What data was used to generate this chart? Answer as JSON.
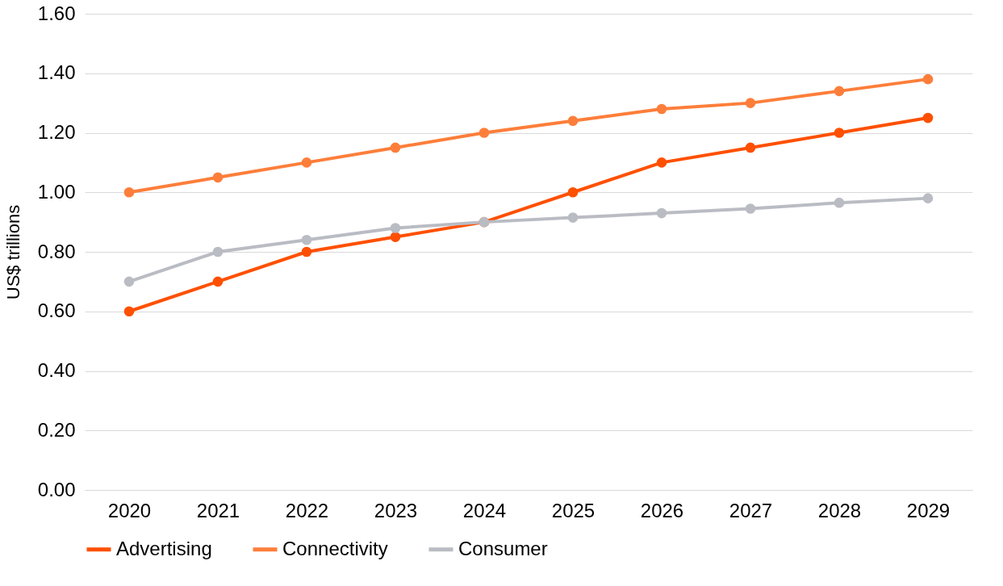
{
  "chart_data": {
    "type": "line",
    "ylabel": "US$ trillions",
    "categories": [
      "2020",
      "2021",
      "2022",
      "2023",
      "2024",
      "2025",
      "2026",
      "2027",
      "2028",
      "2029"
    ],
    "series": [
      {
        "name": "Advertising",
        "color": "#fe5000",
        "values": [
          0.6,
          0.7,
          0.8,
          0.85,
          0.9,
          1.0,
          1.1,
          1.15,
          1.2,
          1.25
        ]
      },
      {
        "name": "Connectivity",
        "color": "#fd7e3a",
        "values": [
          1.0,
          1.05,
          1.1,
          1.15,
          1.2,
          1.24,
          1.28,
          1.3,
          1.34,
          1.38
        ]
      },
      {
        "name": "Consumer",
        "color": "#b9bcc3",
        "values": [
          0.7,
          0.8,
          0.84,
          0.88,
          0.9,
          0.915,
          0.93,
          0.945,
          0.965,
          0.98
        ]
      }
    ],
    "ylim": [
      0,
      1.6
    ],
    "yticks": [
      {
        "value": 0,
        "label": "0.00"
      },
      {
        "value": 0.2,
        "label": "0.20"
      },
      {
        "value": 0.4,
        "label": "0.40"
      },
      {
        "value": 0.6,
        "label": "0.60"
      },
      {
        "value": 0.8,
        "label": "0.80"
      },
      {
        "value": 1.0,
        "label": "1.00"
      },
      {
        "value": 1.2,
        "label": "1.20"
      },
      {
        "value": 1.4,
        "label": "1.40"
      },
      {
        "value": 1.6,
        "label": "1.60"
      }
    ],
    "grid": "y",
    "legend": "bottom",
    "marker": "circle",
    "line_style": "solid"
  }
}
